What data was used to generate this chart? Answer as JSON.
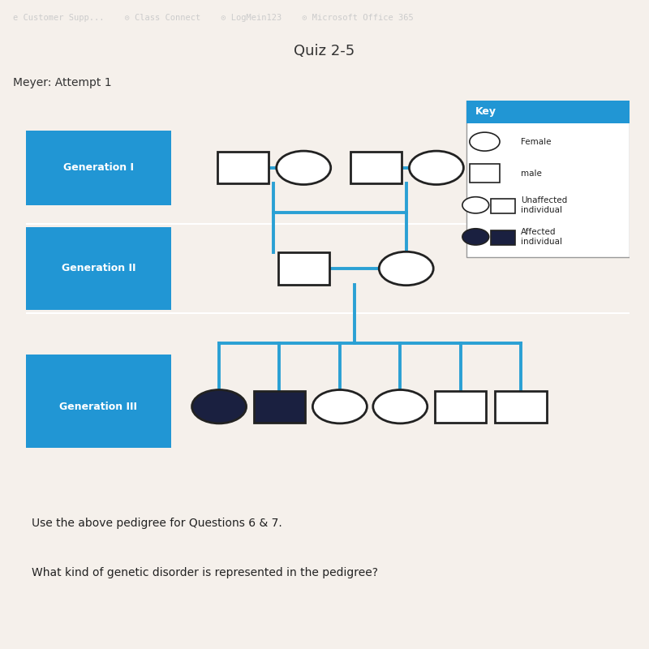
{
  "title": "Quiz 2-5",
  "subtitle": "Meyer: Attempt 1",
  "nav_bg": "#1a1a1a",
  "nav_text_color": "#cccccc",
  "nav_items": [
    "e Customer Supp...",
    "Class Connect",
    "LogMein123",
    "Microsoft Office 365"
  ],
  "outer_bg": "#e8e0d4",
  "page_bg": "#f5f0eb",
  "pedigree_bg": "#c8dcee",
  "gen_label_bg": "#2196d4",
  "gen_label_text": "#ffffff",
  "line_color": "#2aa0d4",
  "line_width": 2.8,
  "shape_edge_color": "#222222",
  "shape_fill_unaffected": "#ffffff",
  "shape_fill_affected": "#1a2040",
  "key_header_bg": "#2196d4",
  "key_header_text": "#ffffff",
  "note1": "Use the above pedigree for Questions 6 & 7.",
  "note2": "What kind of genetic disorder is represented in the pedigree?",
  "page_title_color": "#333333"
}
